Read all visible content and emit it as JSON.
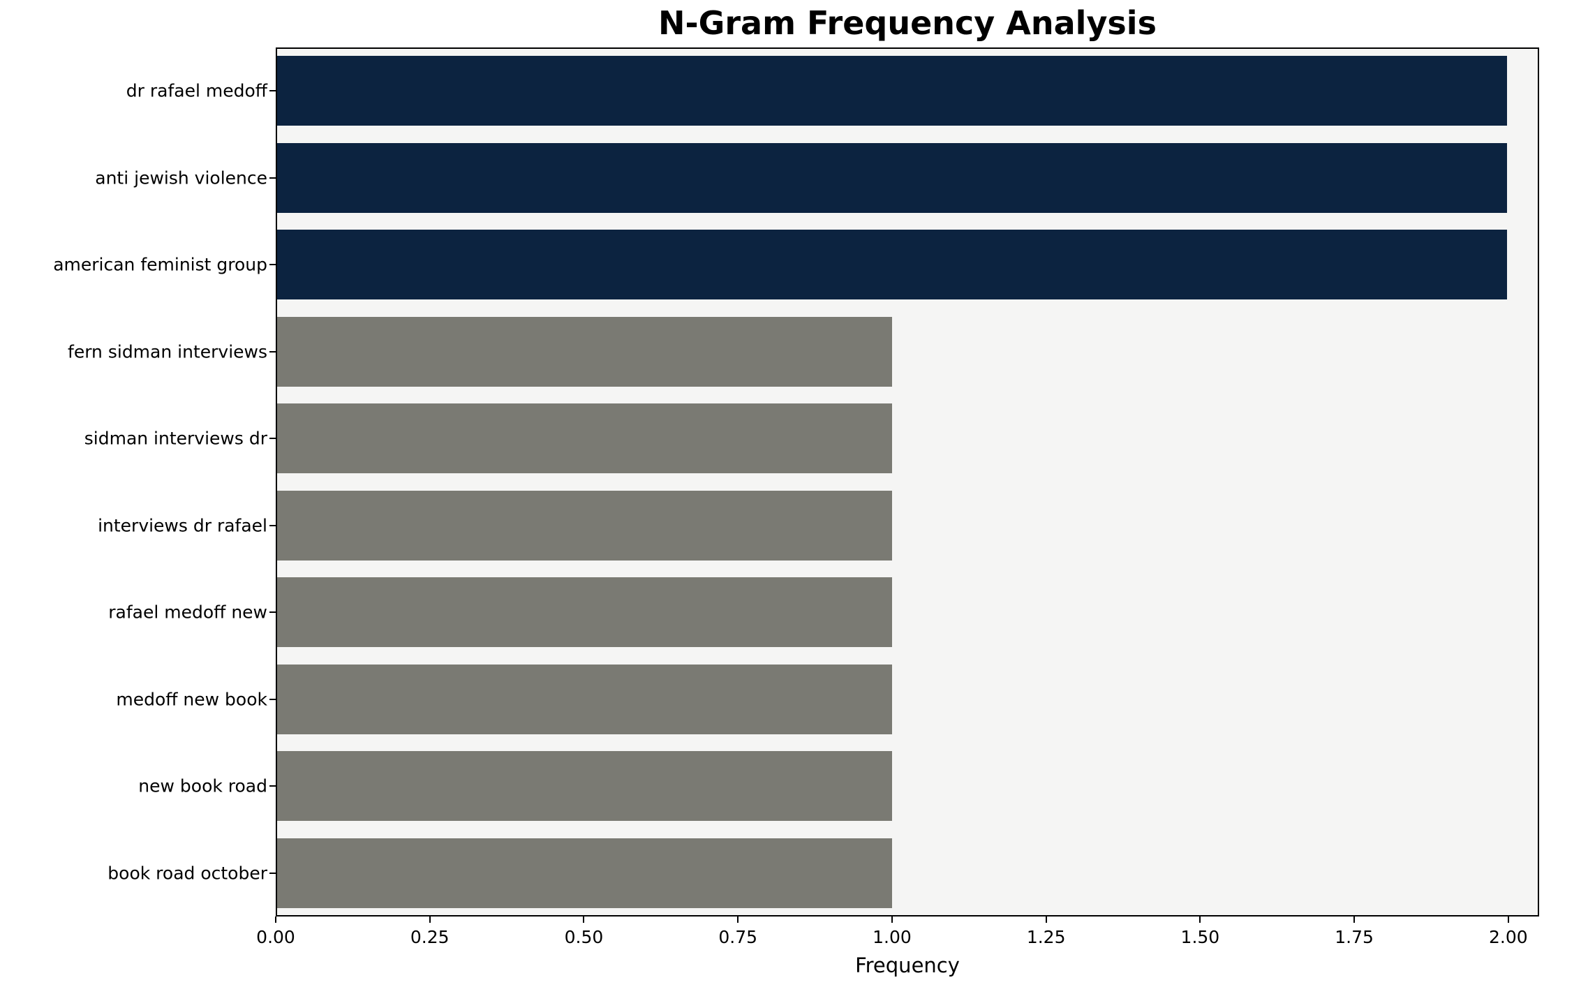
{
  "chart_data": {
    "type": "bar",
    "orientation": "horizontal",
    "title": "N-Gram Frequency Analysis",
    "xlabel": "Frequency",
    "ylabel": "",
    "categories": [
      "dr rafael medoff",
      "anti jewish violence",
      "american feminist group",
      "fern sidman interviews",
      "sidman interviews dr",
      "interviews dr rafael",
      "rafael medoff new",
      "medoff new book",
      "new book road",
      "book road october"
    ],
    "values": [
      2,
      2,
      2,
      1,
      1,
      1,
      1,
      1,
      1,
      1
    ],
    "bar_colors": [
      "#0c2340",
      "#0c2340",
      "#0c2340",
      "#7a7a73",
      "#7a7a73",
      "#7a7a73",
      "#7a7a73",
      "#7a7a73",
      "#7a7a73",
      "#7a7a73"
    ],
    "xlim": [
      0,
      2.05
    ],
    "xticks": [
      0,
      0.25,
      0.5,
      0.75,
      1.0,
      1.25,
      1.5,
      1.75,
      2.0
    ],
    "xtick_labels": [
      "0.00",
      "0.25",
      "0.50",
      "0.75",
      "1.00",
      "1.25",
      "1.50",
      "1.75",
      "2.00"
    ],
    "plot_background": "#f5f5f4",
    "figure_background": "#ffffff",
    "grid": false,
    "legend": "none",
    "bar_band_fraction": 0.8
  }
}
